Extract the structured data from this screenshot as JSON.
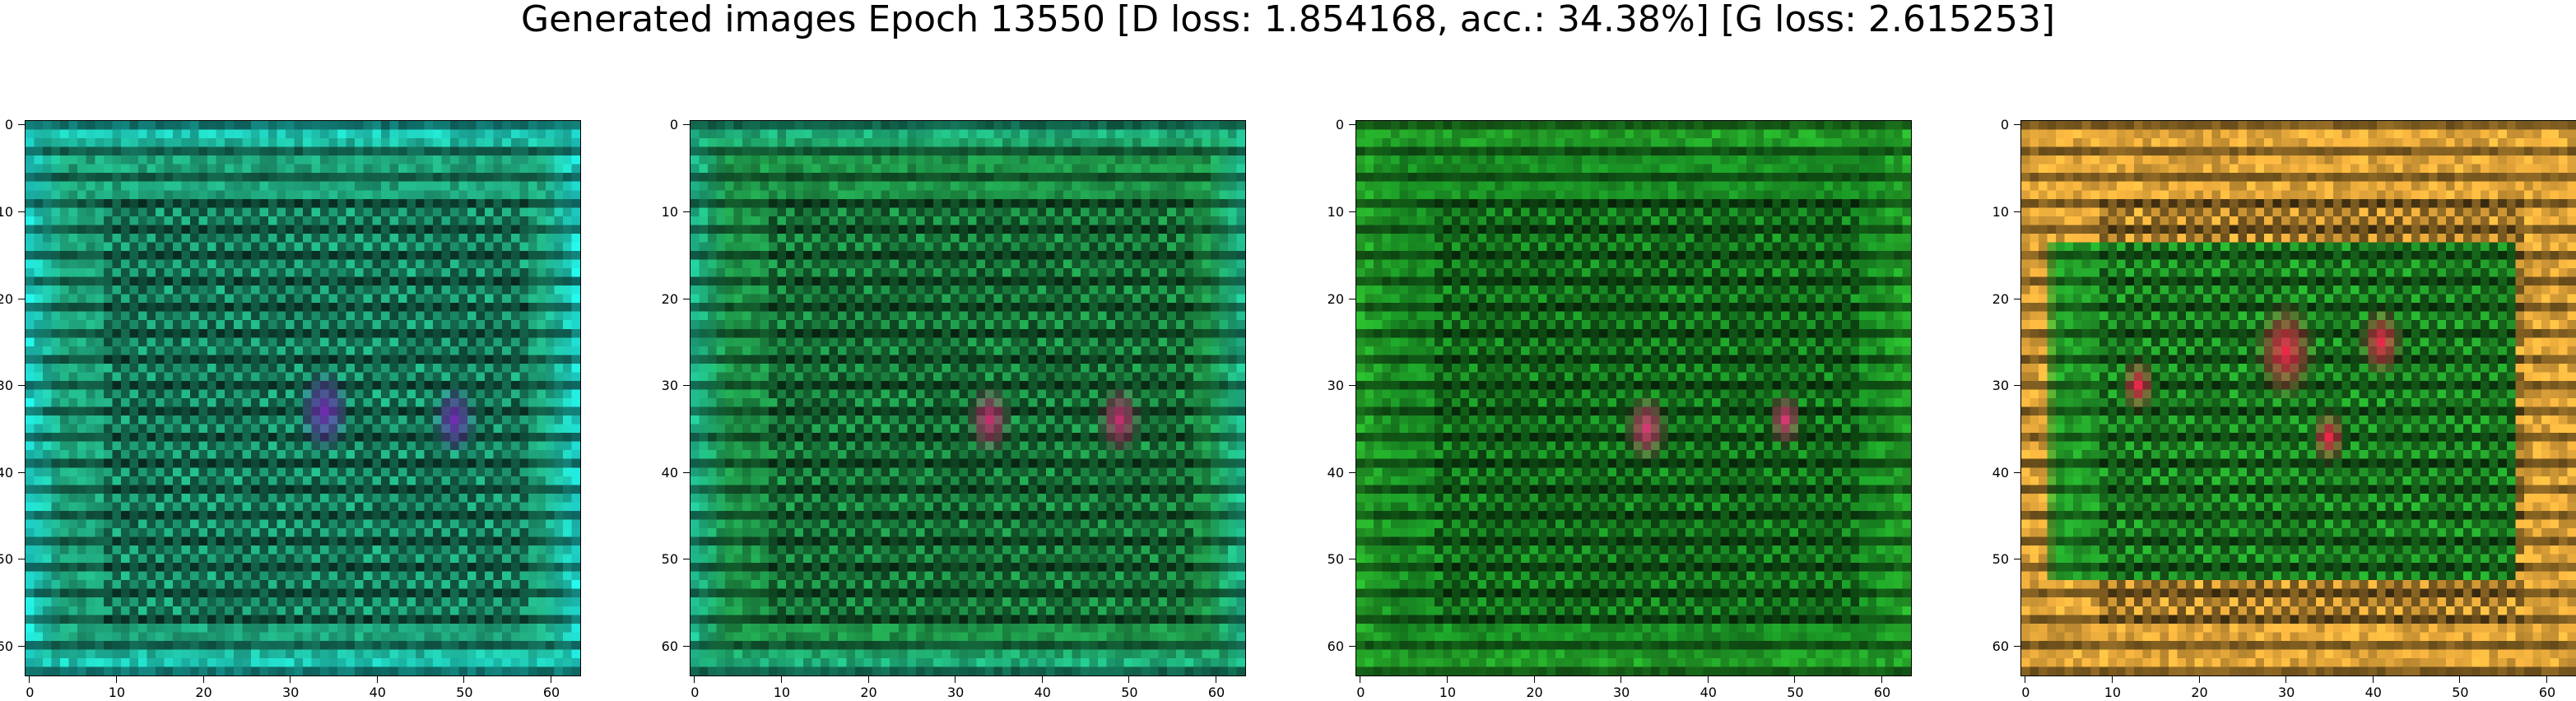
{
  "title": "Generated images Epoch 13550 [D loss: 1.854168, acc.: 34.38%] [G loss: 2.615253]",
  "ticks": [
    "0",
    "10",
    "20",
    "30",
    "40",
    "50",
    "60"
  ],
  "tick_values": [
    0,
    10,
    20,
    30,
    40,
    50,
    60
  ],
  "image_size": 64,
  "panels": [
    {
      "name": "generated-image-1",
      "base_color": "#1fa37a",
      "edge_color": "#1ed1c6",
      "blob_color": "#6d2fb0",
      "wash": "#e3a63a"
    },
    {
      "name": "generated-image-2",
      "base_color": "#1e9448",
      "edge_color": "#1fb58a",
      "blob_color": "#c0306e",
      "wash": "#e3a63a"
    },
    {
      "name": "generated-image-3",
      "base_color": "#1a8f24",
      "edge_color": "#26a629",
      "blob_color": "#d23a72",
      "wash": "#e3a63a"
    },
    {
      "name": "generated-image-4",
      "base_color": "#23a02a",
      "edge_color": "#e3a63a",
      "blob_color": "#e8294a",
      "wash": "#e3a63a"
    }
  ]
}
